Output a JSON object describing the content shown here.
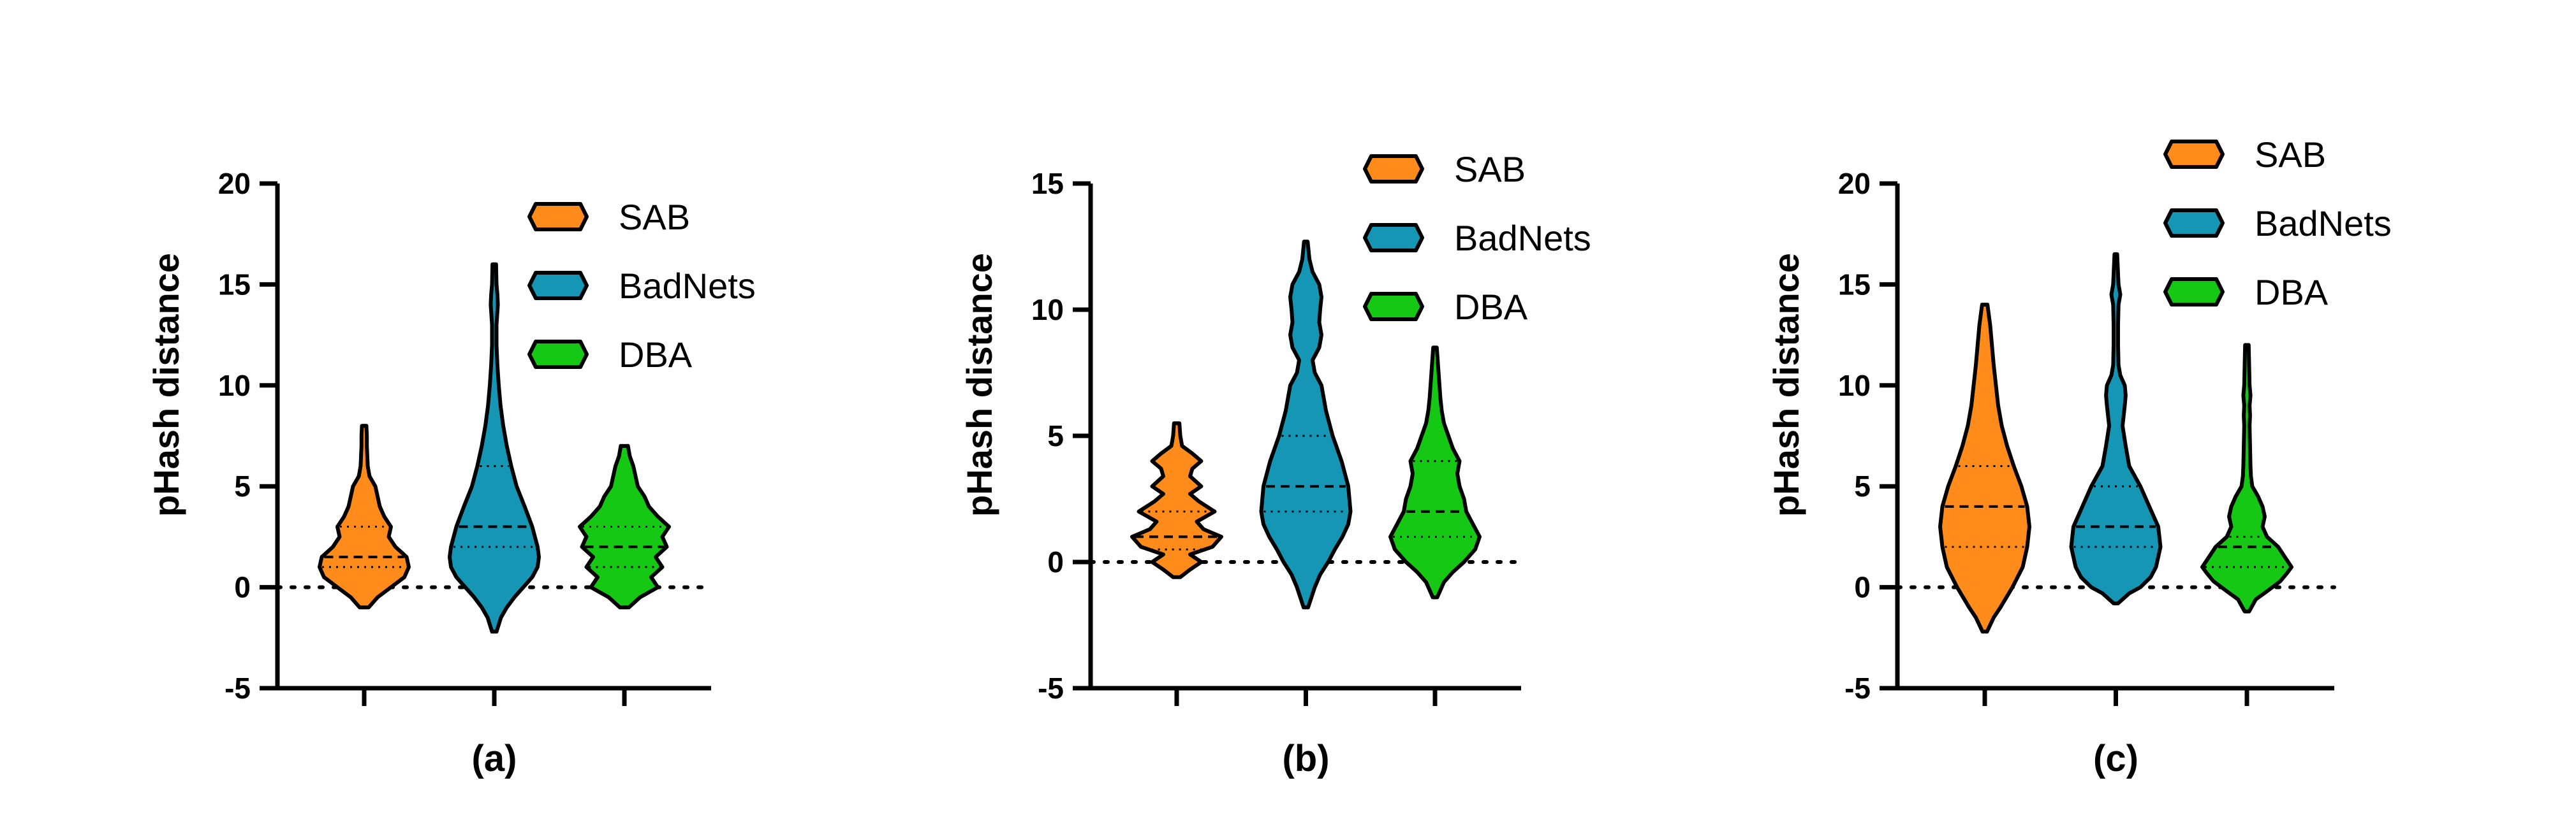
{
  "colors": {
    "SAB": "#ff8c1a",
    "BadNets": "#1496b4",
    "DBA": "#14c814",
    "axis": "#000000"
  },
  "chart_data": [
    {
      "type": "violin",
      "xlabel": "(a)",
      "ylabel": "pHash distance",
      "ylim": [
        -5,
        20
      ],
      "yticks": [
        -5,
        0,
        5,
        10,
        15,
        20
      ],
      "reference_line": 0,
      "legend": [
        "SAB",
        "BadNets",
        "DBA"
      ],
      "legend_position": "top-right",
      "series": [
        {
          "name": "SAB",
          "median": 1.5,
          "q1": 1,
          "q3": 3,
          "profile": [
            [
              -1,
              0.1
            ],
            [
              -0.5,
              0.3
            ],
            [
              0,
              0.6
            ],
            [
              0.5,
              0.9
            ],
            [
              1,
              1.0
            ],
            [
              1.5,
              0.95
            ],
            [
              2,
              0.7
            ],
            [
              2.5,
              0.55
            ],
            [
              3,
              0.6
            ],
            [
              3.5,
              0.45
            ],
            [
              4,
              0.35
            ],
            [
              4.5,
              0.3
            ],
            [
              5,
              0.25
            ],
            [
              5.5,
              0.12
            ],
            [
              6,
              0.08
            ],
            [
              6.5,
              0.07
            ],
            [
              7,
              0.06
            ],
            [
              7.5,
              0.06
            ],
            [
              8,
              0.05
            ]
          ]
        },
        {
          "name": "BadNets",
          "median": 3,
          "q1": 2,
          "q3": 6,
          "profile": [
            [
              -2.2,
              0.05
            ],
            [
              -1.5,
              0.15
            ],
            [
              -1,
              0.28
            ],
            [
              -0.5,
              0.45
            ],
            [
              0,
              0.65
            ],
            [
              0.5,
              0.85
            ],
            [
              1,
              0.97
            ],
            [
              1.5,
              1.0
            ],
            [
              2,
              0.97
            ],
            [
              3,
              0.85
            ],
            [
              4,
              0.68
            ],
            [
              5,
              0.5
            ],
            [
              6,
              0.38
            ],
            [
              7,
              0.28
            ],
            [
              8,
              0.2
            ],
            [
              9,
              0.14
            ],
            [
              10,
              0.1
            ],
            [
              11,
              0.07
            ],
            [
              12,
              0.05
            ],
            [
              13,
              0.05
            ],
            [
              14,
              0.08
            ],
            [
              14.5,
              0.07
            ],
            [
              15,
              0.05
            ],
            [
              16,
              0.04
            ]
          ]
        },
        {
          "name": "DBA",
          "median": 2,
          "q1": 1,
          "q3": 3,
          "profile": [
            [
              -1,
              0.1
            ],
            [
              -0.5,
              0.35
            ],
            [
              0,
              0.75
            ],
            [
              0.5,
              0.6
            ],
            [
              1,
              0.85
            ],
            [
              1.5,
              0.7
            ],
            [
              2,
              0.95
            ],
            [
              2.5,
              0.85
            ],
            [
              3,
              1.0
            ],
            [
              3.5,
              0.75
            ],
            [
              4,
              0.55
            ],
            [
              4.5,
              0.45
            ],
            [
              5,
              0.3
            ],
            [
              5.5,
              0.25
            ],
            [
              6,
              0.2
            ],
            [
              6.5,
              0.12
            ],
            [
              7,
              0.08
            ]
          ]
        }
      ]
    },
    {
      "type": "violin",
      "xlabel": "(b)",
      "ylabel": "pHash distance",
      "ylim": [
        -5,
        15
      ],
      "yticks": [
        -5,
        0,
        5,
        10,
        15
      ],
      "reference_line": 0,
      "legend": [
        "SAB",
        "BadNets",
        "DBA"
      ],
      "legend_position": "top-right",
      "series": [
        {
          "name": "SAB",
          "median": 1,
          "q1": 0.5,
          "q3": 2,
          "profile": [
            [
              -0.6,
              0.08
            ],
            [
              -0.3,
              0.3
            ],
            [
              0,
              0.55
            ],
            [
              0.3,
              0.3
            ],
            [
              0.6,
              0.8
            ],
            [
              1,
              1.0
            ],
            [
              1.3,
              0.6
            ],
            [
              1.6,
              0.45
            ],
            [
              2,
              0.85
            ],
            [
              2.4,
              0.5
            ],
            [
              2.7,
              0.3
            ],
            [
              3,
              0.55
            ],
            [
              3.4,
              0.3
            ],
            [
              3.7,
              0.35
            ],
            [
              4,
              0.55
            ],
            [
              4.3,
              0.35
            ],
            [
              4.6,
              0.12
            ],
            [
              5,
              0.08
            ],
            [
              5.5,
              0.06
            ]
          ]
        },
        {
          "name": "BadNets",
          "median": 3,
          "q1": 2,
          "q3": 5,
          "profile": [
            [
              -1.8,
              0.05
            ],
            [
              -1,
              0.2
            ],
            [
              -0.5,
              0.32
            ],
            [
              0,
              0.5
            ],
            [
              0.5,
              0.65
            ],
            [
              1,
              0.82
            ],
            [
              1.5,
              0.95
            ],
            [
              2,
              1.0
            ],
            [
              3,
              0.95
            ],
            [
              4,
              0.8
            ],
            [
              5,
              0.6
            ],
            [
              6,
              0.45
            ],
            [
              7,
              0.35
            ],
            [
              7.5,
              0.2
            ],
            [
              8,
              0.15
            ],
            [
              8.5,
              0.3
            ],
            [
              9,
              0.35
            ],
            [
              9.5,
              0.3
            ],
            [
              10,
              0.32
            ],
            [
              10.5,
              0.35
            ],
            [
              11,
              0.3
            ],
            [
              11.5,
              0.15
            ],
            [
              12,
              0.08
            ],
            [
              12.7,
              0.04
            ]
          ]
        },
        {
          "name": "DBA",
          "median": 2,
          "q1": 1,
          "q3": 4,
          "profile": [
            [
              -1.4,
              0.05
            ],
            [
              -0.8,
              0.2
            ],
            [
              -0.4,
              0.4
            ],
            [
              0,
              0.65
            ],
            [
              0.5,
              0.9
            ],
            [
              1,
              1.0
            ],
            [
              1.5,
              0.85
            ],
            [
              2,
              0.7
            ],
            [
              2.5,
              0.65
            ],
            [
              3,
              0.55
            ],
            [
              3.5,
              0.5
            ],
            [
              4,
              0.55
            ],
            [
              4.5,
              0.4
            ],
            [
              5,
              0.3
            ],
            [
              5.5,
              0.2
            ],
            [
              6,
              0.15
            ],
            [
              6.5,
              0.12
            ],
            [
              7,
              0.1
            ],
            [
              7.5,
              0.08
            ],
            [
              8,
              0.06
            ],
            [
              8.5,
              0.04
            ]
          ]
        }
      ]
    },
    {
      "type": "violin",
      "xlabel": "(c)",
      "ylabel": "pHash distance",
      "ylim": [
        -5,
        20
      ],
      "yticks": [
        -5,
        0,
        5,
        10,
        15,
        20
      ],
      "reference_line": 0,
      "legend": [
        "SAB",
        "BadNets",
        "DBA"
      ],
      "legend_position": "top-right",
      "series": [
        {
          "name": "SAB",
          "median": 4,
          "q1": 2,
          "q3": 6,
          "profile": [
            [
              -2.2,
              0.05
            ],
            [
              -1.5,
              0.2
            ],
            [
              -1,
              0.35
            ],
            [
              0,
              0.62
            ],
            [
              1,
              0.85
            ],
            [
              2,
              0.95
            ],
            [
              3,
              1.0
            ],
            [
              4,
              0.95
            ],
            [
              5,
              0.82
            ],
            [
              6,
              0.65
            ],
            [
              7,
              0.5
            ],
            [
              8,
              0.38
            ],
            [
              9,
              0.3
            ],
            [
              10,
              0.25
            ],
            [
              11,
              0.2
            ],
            [
              12,
              0.16
            ],
            [
              13,
              0.12
            ],
            [
              14,
              0.06
            ]
          ]
        },
        {
          "name": "BadNets",
          "median": 3,
          "q1": 2,
          "q3": 5,
          "profile": [
            [
              -0.8,
              0.05
            ],
            [
              -0.3,
              0.3
            ],
            [
              0,
              0.55
            ],
            [
              0.5,
              0.78
            ],
            [
              1,
              0.9
            ],
            [
              2,
              1.0
            ],
            [
              3,
              0.95
            ],
            [
              4,
              0.75
            ],
            [
              5,
              0.55
            ],
            [
              6,
              0.3
            ],
            [
              7,
              0.22
            ],
            [
              8,
              0.15
            ],
            [
              9,
              0.2
            ],
            [
              9.5,
              0.22
            ],
            [
              10,
              0.2
            ],
            [
              10.5,
              0.1
            ],
            [
              11,
              0.06
            ],
            [
              12,
              0.05
            ],
            [
              13,
              0.05
            ],
            [
              14,
              0.06
            ],
            [
              14.5,
              0.1
            ],
            [
              15,
              0.06
            ],
            [
              16,
              0.04
            ],
            [
              16.5,
              0.03
            ]
          ]
        },
        {
          "name": "DBA",
          "median": 2,
          "q1": 1,
          "q3": 2.5,
          "profile": [
            [
              -1.2,
              0.05
            ],
            [
              -0.6,
              0.2
            ],
            [
              -0.2,
              0.45
            ],
            [
              0.3,
              0.75
            ],
            [
              0.7,
              0.9
            ],
            [
              1,
              1.0
            ],
            [
              1.5,
              0.85
            ],
            [
              2,
              0.7
            ],
            [
              2.5,
              0.45
            ],
            [
              3,
              0.35
            ],
            [
              3.5,
              0.4
            ],
            [
              4,
              0.35
            ],
            [
              4.5,
              0.25
            ],
            [
              5,
              0.12
            ],
            [
              5.5,
              0.09
            ],
            [
              6,
              0.08
            ],
            [
              7,
              0.07
            ],
            [
              8,
              0.06
            ],
            [
              8.5,
              0.07
            ],
            [
              9,
              0.06
            ],
            [
              9.5,
              0.08
            ],
            [
              10,
              0.06
            ],
            [
              11,
              0.05
            ],
            [
              12,
              0.04
            ]
          ]
        }
      ]
    }
  ]
}
